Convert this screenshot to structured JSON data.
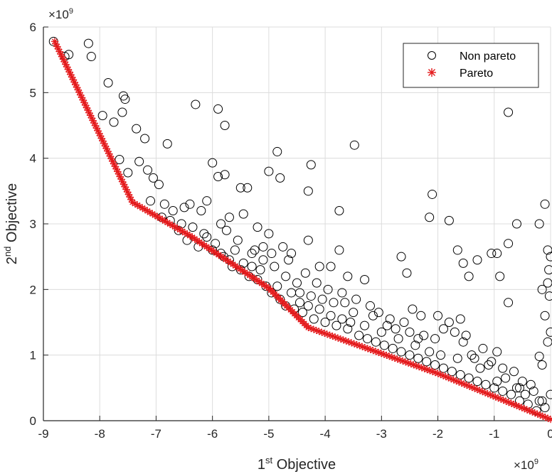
{
  "chart_data": {
    "type": "scatter",
    "xlabel": {
      "base": "1",
      "sup": "st",
      "rest": " Objective"
    },
    "ylabel": {
      "base": "2",
      "sup": "nd",
      "rest": " Objective"
    },
    "xlim": [
      -9,
      0
    ],
    "ylim": [
      0,
      6
    ],
    "x_ticks": [
      -9,
      -8,
      -7,
      -6,
      -5,
      -4,
      -3,
      -2,
      -1,
      0
    ],
    "y_ticks": [
      0,
      1,
      2,
      3,
      4,
      5,
      6
    ],
    "x_tick_labels": [
      "-9",
      "-8",
      "-7",
      "-6",
      "-5",
      "-4",
      "-3",
      "-2",
      "-1",
      "0"
    ],
    "y_tick_labels": [
      "0",
      "1",
      "2",
      "3",
      "4",
      "5",
      "6"
    ],
    "x_exponent": {
      "base": "×10",
      "power": "9"
    },
    "y_exponent": {
      "base": "×10",
      "power": "9"
    },
    "grid": true,
    "legend_position": "top-right",
    "colors": {
      "non_pareto": "#000000",
      "pareto": "#e41a1c",
      "grid": "#dcdcdc",
      "axis": "#262626"
    },
    "series": [
      {
        "name": "Non pareto",
        "marker": "circle",
        "color": "#000000",
        "points": [
          [
            -8.82,
            5.78
          ],
          [
            -8.62,
            5.55
          ],
          [
            -8.55,
            5.58
          ],
          [
            -8.2,
            5.75
          ],
          [
            -8.15,
            5.55
          ],
          [
            -7.85,
            5.15
          ],
          [
            -7.58,
            4.95
          ],
          [
            -7.55,
            4.9
          ],
          [
            -7.6,
            4.7
          ],
          [
            -6.3,
            4.82
          ],
          [
            -5.9,
            4.75
          ],
          [
            -5.78,
            4.5
          ],
          [
            -7.95,
            4.65
          ],
          [
            -7.75,
            4.55
          ],
          [
            -7.35,
            4.45
          ],
          [
            -7.2,
            4.3
          ],
          [
            -6.8,
            4.22
          ],
          [
            -7.65,
            3.98
          ],
          [
            -7.3,
            3.95
          ],
          [
            -7.15,
            3.82
          ],
          [
            -7.05,
            3.7
          ],
          [
            -6.95,
            3.6
          ],
          [
            -6.0,
            3.93
          ],
          [
            -5.9,
            3.72
          ],
          [
            -5.78,
            3.75
          ],
          [
            -5.5,
            3.55
          ],
          [
            -5.38,
            3.55
          ],
          [
            -5.0,
            3.8
          ],
          [
            -4.85,
            4.1
          ],
          [
            -4.8,
            3.7
          ],
          [
            -4.25,
            3.9
          ],
          [
            -4.3,
            3.5
          ],
          [
            -3.48,
            4.2
          ],
          [
            -3.75,
            3.2
          ],
          [
            -7.5,
            3.78
          ],
          [
            -7.1,
            3.35
          ],
          [
            -6.85,
            3.3
          ],
          [
            -6.7,
            3.2
          ],
          [
            -6.5,
            3.25
          ],
          [
            -6.4,
            3.3
          ],
          [
            -6.2,
            3.2
          ],
          [
            -6.1,
            3.35
          ],
          [
            -5.85,
            3.0
          ],
          [
            -5.7,
            3.1
          ],
          [
            -5.45,
            3.15
          ],
          [
            -5.2,
            2.95
          ],
          [
            -5.0,
            2.85
          ],
          [
            -4.75,
            2.65
          ],
          [
            -4.6,
            2.55
          ],
          [
            -4.3,
            2.75
          ],
          [
            -4.1,
            2.35
          ],
          [
            -3.9,
            2.35
          ],
          [
            -3.75,
            2.6
          ],
          [
            -3.6,
            2.2
          ],
          [
            -3.3,
            2.15
          ],
          [
            -2.65,
            2.5
          ],
          [
            -2.55,
            2.25
          ],
          [
            -2.1,
            3.45
          ],
          [
            -2.15,
            3.1
          ],
          [
            -1.8,
            3.05
          ],
          [
            -1.65,
            2.6
          ],
          [
            -1.55,
            2.4
          ],
          [
            -1.45,
            2.2
          ],
          [
            -1.3,
            2.45
          ],
          [
            -1.05,
            2.55
          ],
          [
            -0.95,
            2.55
          ],
          [
            -0.75,
            4.7
          ],
          [
            -0.75,
            2.7
          ],
          [
            -0.9,
            2.2
          ],
          [
            -0.6,
            3.0
          ],
          [
            -0.2,
            3.0
          ],
          [
            -0.1,
            3.3
          ],
          [
            -0.05,
            2.6
          ],
          [
            0.0,
            2.5
          ],
          [
            -0.03,
            2.3
          ],
          [
            -0.05,
            2.1
          ],
          [
            -0.15,
            2.0
          ],
          [
            -0.02,
            1.9
          ],
          [
            -0.1,
            1.6
          ],
          [
            0.0,
            1.35
          ],
          [
            -0.05,
            1.2
          ],
          [
            -0.2,
            0.98
          ],
          [
            -0.15,
            0.85
          ],
          [
            0.0,
            0.4
          ],
          [
            -5.6,
            2.6
          ],
          [
            -5.3,
            2.55
          ],
          [
            -5.1,
            2.45
          ],
          [
            -4.9,
            2.35
          ],
          [
            -4.7,
            2.2
          ],
          [
            -4.5,
            2.1
          ],
          [
            -4.45,
            1.95
          ],
          [
            -4.25,
            1.9
          ],
          [
            -4.05,
            1.85
          ],
          [
            -3.85,
            1.8
          ],
          [
            -3.65,
            1.8
          ],
          [
            -3.5,
            1.65
          ],
          [
            -3.2,
            1.75
          ],
          [
            -3.05,
            1.65
          ],
          [
            -2.9,
            1.45
          ],
          [
            -2.75,
            1.4
          ],
          [
            -2.6,
            1.5
          ],
          [
            -2.5,
            1.35
          ],
          [
            -2.35,
            1.25
          ],
          [
            -2.25,
            1.3
          ],
          [
            -2.05,
            1.25
          ],
          [
            -1.9,
            1.4
          ],
          [
            -1.8,
            1.5
          ],
          [
            -1.7,
            1.35
          ],
          [
            -1.55,
            1.2
          ],
          [
            -1.4,
            1.0
          ],
          [
            -1.2,
            1.1
          ],
          [
            -1.05,
            0.9
          ],
          [
            -0.95,
            0.6
          ],
          [
            -0.85,
            0.8
          ],
          [
            -0.75,
            1.8
          ],
          [
            -0.55,
            0.5
          ],
          [
            -0.45,
            0.4
          ],
          [
            -0.3,
            0.45
          ],
          [
            -0.2,
            0.3
          ],
          [
            -0.1,
            0.2
          ],
          [
            -6.6,
            2.9
          ],
          [
            -6.45,
            2.75
          ],
          [
            -6.25,
            2.65
          ],
          [
            -6.1,
            2.8
          ],
          [
            -5.95,
            2.7
          ],
          [
            -5.8,
            2.5
          ],
          [
            -5.65,
            2.35
          ],
          [
            -5.5,
            2.3
          ],
          [
            -5.35,
            2.2
          ],
          [
            -5.2,
            2.15
          ],
          [
            -5.05,
            2.05
          ],
          [
            -4.95,
            1.95
          ],
          [
            -4.8,
            1.85
          ],
          [
            -4.7,
            1.75
          ],
          [
            -4.55,
            1.7
          ],
          [
            -4.4,
            1.65
          ],
          [
            -4.2,
            1.55
          ],
          [
            -4.0,
            1.5
          ],
          [
            -3.8,
            1.45
          ],
          [
            -3.6,
            1.4
          ],
          [
            -3.4,
            1.3
          ],
          [
            -3.25,
            1.25
          ],
          [
            -3.1,
            1.2
          ],
          [
            -2.95,
            1.15
          ],
          [
            -2.8,
            1.1
          ],
          [
            -2.65,
            1.05
          ],
          [
            -2.5,
            1.0
          ],
          [
            -2.35,
            0.95
          ],
          [
            -2.2,
            0.9
          ],
          [
            -2.05,
            0.85
          ],
          [
            -1.9,
            0.8
          ],
          [
            -1.75,
            0.75
          ],
          [
            -1.6,
            0.7
          ],
          [
            -1.45,
            0.65
          ],
          [
            -1.3,
            0.6
          ],
          [
            -1.15,
            0.55
          ],
          [
            -1.0,
            0.5
          ],
          [
            -0.85,
            0.45
          ],
          [
            -0.7,
            0.4
          ],
          [
            -0.55,
            0.3
          ],
          [
            -0.4,
            0.25
          ],
          [
            -0.25,
            0.15
          ],
          [
            -5.75,
            2.9
          ],
          [
            -5.55,
            2.75
          ],
          [
            -5.25,
            2.6
          ],
          [
            -5.1,
            2.65
          ],
          [
            -4.95,
            2.55
          ],
          [
            -4.65,
            2.45
          ],
          [
            -4.35,
            2.25
          ],
          [
            -4.15,
            2.1
          ],
          [
            -3.95,
            2.0
          ],
          [
            -3.7,
            1.95
          ],
          [
            -3.45,
            1.85
          ],
          [
            -3.15,
            1.6
          ],
          [
            -2.85,
            1.55
          ],
          [
            -2.45,
            1.7
          ],
          [
            -2.3,
            1.6
          ],
          [
            -2.0,
            1.6
          ],
          [
            -1.6,
            1.55
          ],
          [
            -1.5,
            1.3
          ],
          [
            -1.35,
            0.95
          ],
          [
            -1.1,
            0.85
          ],
          [
            -0.95,
            1.05
          ],
          [
            -0.65,
            0.75
          ],
          [
            -0.5,
            0.6
          ],
          [
            -0.35,
            0.55
          ],
          [
            -6.9,
            3.1
          ],
          [
            -6.75,
            3.05
          ],
          [
            -6.55,
            3.0
          ],
          [
            -6.35,
            2.95
          ],
          [
            -6.15,
            2.85
          ],
          [
            -6.0,
            2.6
          ],
          [
            -5.85,
            2.55
          ],
          [
            -5.7,
            2.45
          ],
          [
            -5.45,
            2.4
          ],
          [
            -5.3,
            2.35
          ],
          [
            -5.15,
            2.3
          ],
          [
            -4.85,
            2.05
          ],
          [
            -4.6,
            1.95
          ],
          [
            -4.45,
            1.8
          ],
          [
            -4.3,
            1.75
          ],
          [
            -4.1,
            1.7
          ],
          [
            -3.9,
            1.6
          ],
          [
            -3.7,
            1.55
          ],
          [
            -3.55,
            1.5
          ],
          [
            -3.3,
            1.45
          ],
          [
            -3.0,
            1.35
          ],
          [
            -2.7,
            1.25
          ],
          [
            -2.4,
            1.15
          ],
          [
            -2.15,
            1.05
          ],
          [
            -1.95,
            1.0
          ],
          [
            -1.65,
            0.95
          ],
          [
            -1.25,
            0.8
          ],
          [
            -0.8,
            0.65
          ],
          [
            -0.6,
            0.5
          ],
          [
            -0.15,
            0.3
          ]
        ]
      },
      {
        "name": "Pareto",
        "marker": "asterisk",
        "color": "#e41a1c",
        "vertices": [
          [
            -8.8,
            5.78
          ],
          [
            -7.42,
            3.33
          ],
          [
            -6.4,
            2.82
          ],
          [
            -5.0,
            2.02
          ],
          [
            -4.3,
            1.42
          ],
          [
            -2.0,
            0.72
          ],
          [
            0.0,
            0.02
          ]
        ]
      }
    ]
  }
}
